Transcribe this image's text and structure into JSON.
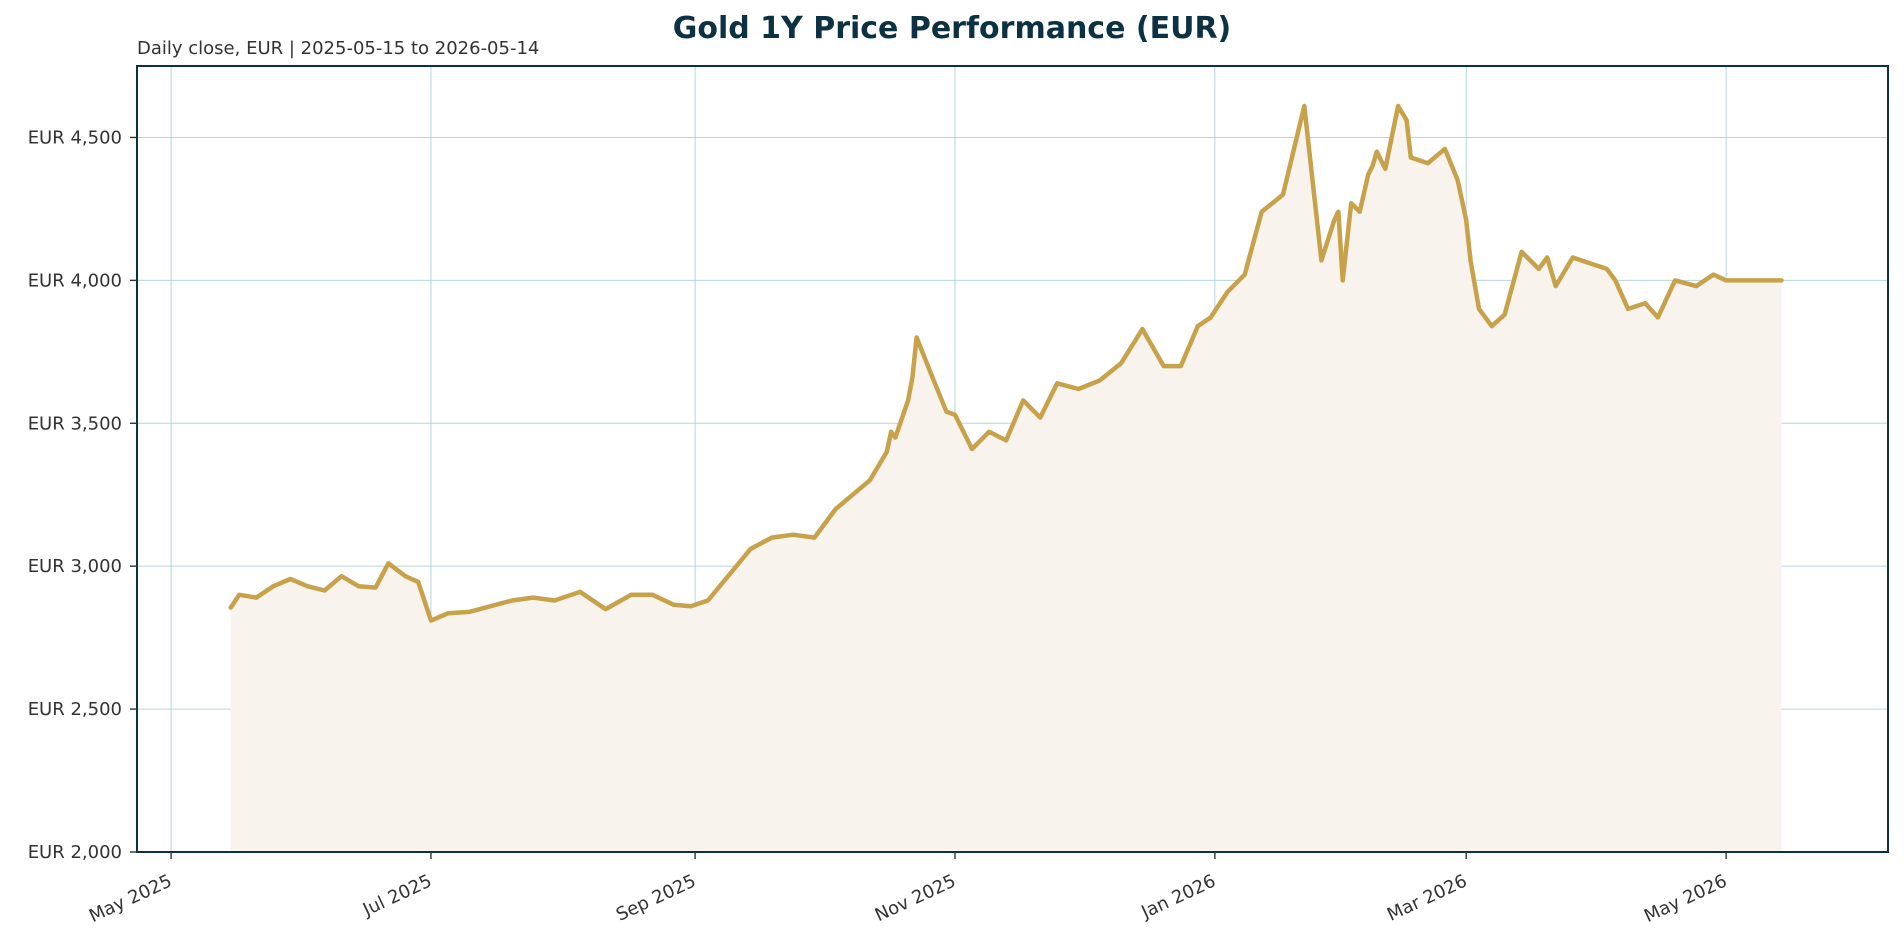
{
  "chart_data": {
    "type": "line",
    "title": "Gold 1Y Price Performance (EUR)",
    "subtitle": "Daily close, EUR | 2025-05-15 to 2026-05-14",
    "xlabel": "",
    "ylabel": "",
    "ylim": [
      2000,
      4750
    ],
    "xlim": [
      "2025-04-23",
      "2026-06-08"
    ],
    "grid": true,
    "fill_under_line": true,
    "colors": {
      "line": "#c8a24a",
      "fill": "#f8f4ed",
      "frame": "#0b3142",
      "grid": "#9ac3d0",
      "title": "#0b3142"
    },
    "y_ticks": [
      {
        "value": 2000,
        "label": "EUR 2,000"
      },
      {
        "value": 2500,
        "label": "EUR 2,500"
      },
      {
        "value": 3000,
        "label": "EUR 3,000"
      },
      {
        "value": 3500,
        "label": "EUR 3,500"
      },
      {
        "value": 4000,
        "label": "EUR 4,000"
      },
      {
        "value": 4500,
        "label": "EUR 4,500"
      }
    ],
    "x_ticks": [
      {
        "date": "2025-05-01",
        "label": "May 2025"
      },
      {
        "date": "2025-07-01",
        "label": "Jul 2025"
      },
      {
        "date": "2025-09-01",
        "label": "Sep 2025"
      },
      {
        "date": "2025-11-01",
        "label": "Nov 2025"
      },
      {
        "date": "2026-01-01",
        "label": "Jan 2026"
      },
      {
        "date": "2026-03-01",
        "label": "Mar 2026"
      },
      {
        "date": "2026-05-01",
        "label": "May 2026"
      }
    ],
    "series": [
      {
        "x": [
          "2025-05-15",
          "2025-05-17",
          "2025-05-21",
          "2025-05-25",
          "2025-05-29",
          "2025-06-02",
          "2025-06-06",
          "2025-06-10",
          "2025-06-14",
          "2025-06-18",
          "2025-06-21",
          "2025-06-25",
          "2025-06-28",
          "2025-07-01",
          "2025-07-05",
          "2025-07-10",
          "2025-07-15",
          "2025-07-20",
          "2025-07-25",
          "2025-07-30",
          "2025-08-05",
          "2025-08-11",
          "2025-08-17",
          "2025-08-22",
          "2025-08-27",
          "2025-08-31",
          "2025-09-04",
          "2025-09-09",
          "2025-09-14",
          "2025-09-19",
          "2025-09-24",
          "2025-09-29",
          "2025-10-04",
          "2025-10-08",
          "2025-10-12",
          "2025-10-16",
          "2025-10-17",
          "2025-10-18",
          "2025-10-21",
          "2025-10-22",
          "2025-10-23",
          "2025-10-27",
          "2025-10-30",
          "2025-11-01",
          "2025-11-05",
          "2025-11-09",
          "2025-11-13",
          "2025-11-17",
          "2025-11-21",
          "2025-11-25",
          "2025-11-30",
          "2025-12-05",
          "2025-12-10",
          "2025-12-15",
          "2025-12-20",
          "2025-12-24",
          "2025-12-28",
          "2025-12-31",
          "2026-01-04",
          "2026-01-08",
          "2026-01-12",
          "2026-01-17",
          "2026-01-22",
          "2026-01-26",
          "2026-01-29",
          "2026-01-30",
          "2026-01-31",
          "2026-02-02",
          "2026-02-04",
          "2026-02-06",
          "2026-02-07",
          "2026-02-08",
          "2026-02-10",
          "2026-02-13",
          "2026-02-15",
          "2026-02-16",
          "2026-02-20",
          "2026-02-24",
          "2026-02-27",
          "2026-03-01",
          "2026-03-02",
          "2026-03-04",
          "2026-03-07",
          "2026-03-10",
          "2026-03-14",
          "2026-03-18",
          "2026-03-20",
          "2026-03-22",
          "2026-03-26",
          "2026-03-30",
          "2026-04-03",
          "2026-04-05",
          "2026-04-08",
          "2026-04-12",
          "2026-04-15",
          "2026-04-19",
          "2026-04-24",
          "2026-04-28",
          "2026-05-01",
          "2026-05-04",
          "2026-05-07",
          "2026-05-10",
          "2026-05-12",
          "2026-05-14"
        ],
        "values": [
          2855,
          2900,
          2890,
          2930,
          2955,
          2930,
          2915,
          2965,
          2930,
          2925,
          3010,
          2965,
          2945,
          2810,
          2835,
          2840,
          2860,
          2880,
          2890,
          2880,
          2910,
          2850,
          2900,
          2900,
          2865,
          2860,
          2880,
          2970,
          3060,
          3100,
          3110,
          3100,
          3200,
          3250,
          3300,
          3400,
          3470,
          3450,
          3580,
          3660,
          3800,
          3650,
          3540,
          3530,
          3410,
          3470,
          3440,
          3580,
          3520,
          3640,
          3620,
          3650,
          3710,
          3830,
          3700,
          3700,
          3840,
          3870,
          3960,
          4020,
          4240,
          4300,
          4610,
          4070,
          4210,
          4240,
          4000,
          4270,
          4240,
          4370,
          4400,
          4450,
          4390,
          4610,
          4560,
          4430,
          4410,
          4460,
          4350,
          4210,
          4070,
          3900,
          3840,
          3880,
          4100,
          4040,
          4080,
          3980,
          4080,
          4060,
          4040,
          4000,
          3900,
          3920,
          3870,
          4000,
          3980,
          4020,
          4000,
          4000,
          4000,
          4000,
          4000,
          4000
        ]
      }
    ]
  }
}
